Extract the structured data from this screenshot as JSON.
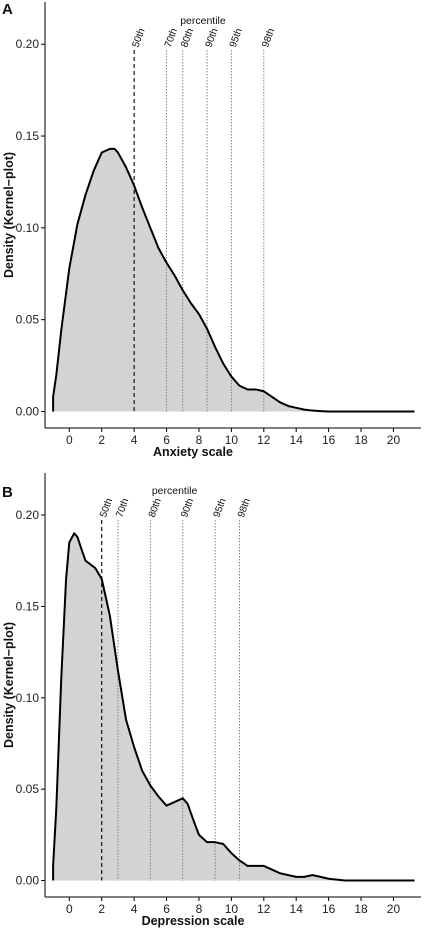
{
  "colors": {
    "fill": "#d3d3d3",
    "curve": "#000000",
    "axis": "#000000",
    "percentile_line": "#777777",
    "median_line": "#000000"
  },
  "chart_data": [
    {
      "type": "area",
      "panel_label": "A",
      "xlabel": "Anxiety scale",
      "ylabel": "Density (Kernel−plot)",
      "xlim": [
        -1.5,
        21.7
      ],
      "ylim": [
        -0.009,
        0.223
      ],
      "x_ticks": [
        0,
        2,
        4,
        6,
        8,
        10,
        12,
        14,
        16,
        18,
        20
      ],
      "y_ticks": [
        0.0,
        0.05,
        0.1,
        0.15,
        0.2
      ],
      "y_tick_labels": [
        "0.00",
        "0.05",
        "0.10",
        "0.15",
        "0.20"
      ],
      "grid": false,
      "curve": {
        "x": [
          -1,
          -0.8,
          -0.5,
          0,
          0.5,
          1,
          1.5,
          2,
          2.5,
          2.8,
          3,
          3.5,
          4,
          4.5,
          5,
          5.5,
          6,
          6.5,
          7,
          7.5,
          8,
          8.5,
          9,
          9.5,
          10,
          10.5,
          11,
          11.5,
          12,
          12.5,
          13,
          13.5,
          14,
          14.5,
          15,
          15.5,
          16,
          17,
          18,
          19,
          20,
          21.3
        ],
        "y": [
          0.008,
          0.02,
          0.044,
          0.078,
          0.102,
          0.118,
          0.131,
          0.141,
          0.143,
          0.143,
          0.141,
          0.133,
          0.123,
          0.111,
          0.1,
          0.089,
          0.081,
          0.074,
          0.066,
          0.059,
          0.053,
          0.045,
          0.035,
          0.026,
          0.019,
          0.014,
          0.012,
          0.012,
          0.011,
          0.008,
          0.005,
          0.003,
          0.002,
          0.001,
          0.0005,
          0.0002,
          0.0,
          0.0,
          0.0,
          0.0,
          0.0,
          0.0
        ]
      },
      "percentile_title": "percentile",
      "percentiles": [
        {
          "label": "50th",
          "x": 4,
          "style": "dashed"
        },
        {
          "label": "70th",
          "x": 6,
          "style": "dotted"
        },
        {
          "label": "80th",
          "x": 7,
          "style": "dotted"
        },
        {
          "label": "90th",
          "x": 8.5,
          "style": "dotted"
        },
        {
          "label": "95th",
          "x": 10,
          "style": "dotted"
        },
        {
          "label": "98th",
          "x": 12,
          "style": "dotted"
        }
      ]
    },
    {
      "type": "area",
      "panel_label": "B",
      "xlabel": "Depression scale",
      "ylabel": "Density (Kernel−plot)",
      "xlim": [
        -1.5,
        21.7
      ],
      "ylim": [
        -0.009,
        0.223
      ],
      "x_ticks": [
        0,
        2,
        4,
        6,
        8,
        10,
        12,
        14,
        16,
        18,
        20
      ],
      "y_ticks": [
        0.0,
        0.05,
        0.1,
        0.15,
        0.2
      ],
      "y_tick_labels": [
        "0.00",
        "0.05",
        "0.10",
        "0.15",
        "0.20"
      ],
      "grid": false,
      "curve": {
        "x": [
          -1,
          -0.8,
          -0.5,
          -0.2,
          0,
          0.3,
          0.5,
          0.8,
          1,
          1.3,
          1.6,
          2,
          2.5,
          3,
          3.5,
          4,
          4.5,
          5,
          5.5,
          6,
          6.5,
          7,
          7.3,
          7.7,
          8,
          8.5,
          9,
          9.5,
          10,
          10.5,
          11,
          11.5,
          12,
          12.5,
          13,
          13.5,
          14,
          14.5,
          15,
          15.5,
          16,
          16.5,
          17,
          18,
          19,
          20,
          21.3
        ],
        "y": [
          0.008,
          0.04,
          0.11,
          0.165,
          0.185,
          0.19,
          0.188,
          0.18,
          0.175,
          0.173,
          0.171,
          0.165,
          0.145,
          0.115,
          0.088,
          0.073,
          0.06,
          0.052,
          0.046,
          0.041,
          0.043,
          0.045,
          0.042,
          0.032,
          0.025,
          0.021,
          0.021,
          0.02,
          0.015,
          0.011,
          0.008,
          0.008,
          0.008,
          0.006,
          0.004,
          0.003,
          0.002,
          0.002,
          0.003,
          0.002,
          0.001,
          0.0005,
          0.0,
          0.0,
          0.0,
          0.0,
          0.0
        ]
      },
      "percentile_title": "percentile",
      "percentiles": [
        {
          "label": "50th",
          "x": 2,
          "style": "dashed"
        },
        {
          "label": "70th",
          "x": 3,
          "style": "dotted"
        },
        {
          "label": "80th",
          "x": 5,
          "style": "dotted"
        },
        {
          "label": "90th",
          "x": 7,
          "style": "dotted"
        },
        {
          "label": "95th",
          "x": 9,
          "style": "dotted"
        },
        {
          "label": "98th",
          "x": 10.5,
          "style": "dotted"
        }
      ]
    }
  ]
}
